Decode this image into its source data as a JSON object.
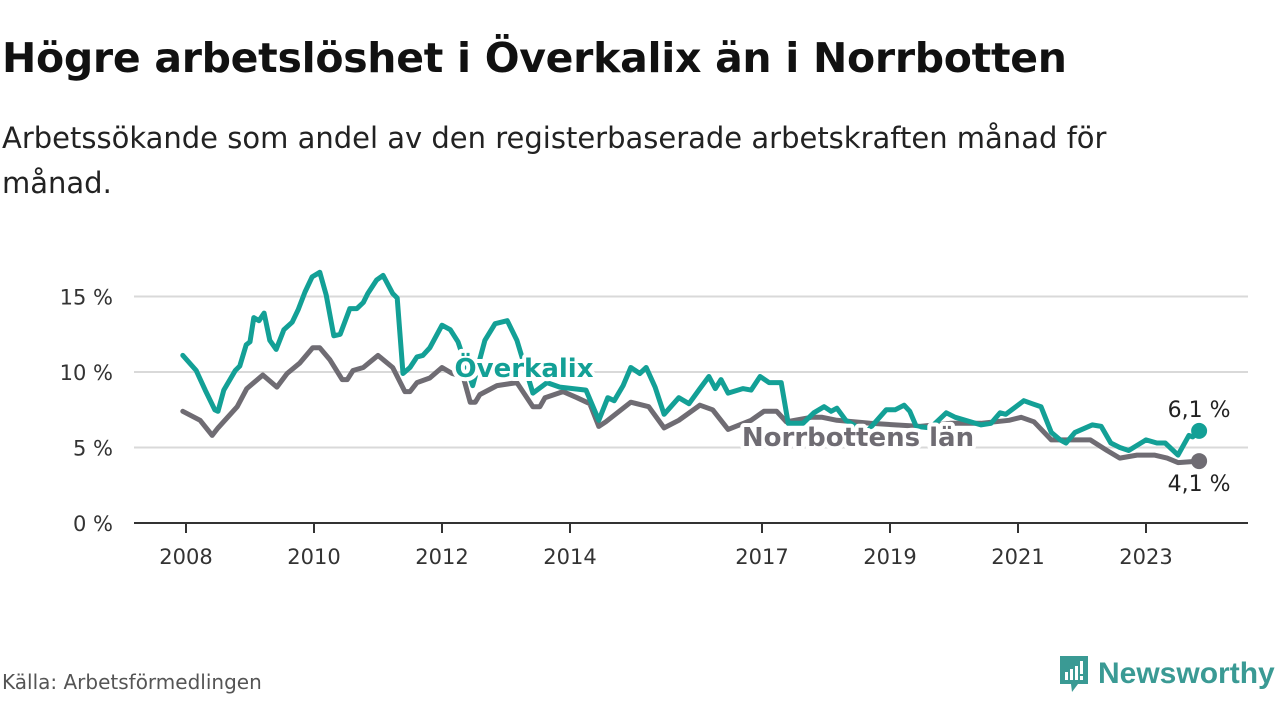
{
  "title": "Högre arbetslöshet i Överkalix än i Norrbotten",
  "subtitle": "Arbetssökande som andel av den registerbaserade arbetskraften månad för månad.",
  "source": "Källa: Arbetsförmedlingen",
  "logo": "Newsworthy",
  "colors": {
    "overkalix": "#13a096",
    "norrbotten": "#6f6c73",
    "grid": "#d9d9d9",
    "axis": "#333333"
  },
  "chart_data": {
    "type": "line",
    "title": "Högre arbetslöshet i Överkalix än i Norrbotten",
    "xlabel": "",
    "ylabel": "",
    "ylim": [
      0,
      17
    ],
    "xlim": [
      2007.7,
      2025.0
    ],
    "yticks": [
      0,
      5,
      10,
      15
    ],
    "ytick_labels": [
      "0 %",
      "5 %",
      "10 %",
      "15 %"
    ],
    "xticks": [
      2008,
      2010,
      2012,
      2014,
      2017,
      2019,
      2021,
      2023
    ],
    "xtick_labels": [
      "2008",
      "2010",
      "2012",
      "2014",
      "2017",
      "2019",
      "2021",
      "2023"
    ],
    "grid": true,
    "legend": "inline labels",
    "series": [
      {
        "name": "Överkalix",
        "end_label": "6,1 %",
        "points": [
          [
            2007.95,
            11.1
          ],
          [
            2008.16,
            10.1
          ],
          [
            2008.3,
            8.8
          ],
          [
            2008.45,
            7.5
          ],
          [
            2008.5,
            7.4
          ],
          [
            2008.59,
            8.8
          ],
          [
            2008.77,
            10.1
          ],
          [
            2008.84,
            10.4
          ],
          [
            2008.94,
            11.8
          ],
          [
            2009.0,
            12.0
          ],
          [
            2009.06,
            13.6
          ],
          [
            2009.14,
            13.4
          ],
          [
            2009.22,
            13.9
          ],
          [
            2009.31,
            12.1
          ],
          [
            2009.41,
            11.5
          ],
          [
            2009.53,
            12.8
          ],
          [
            2009.66,
            13.3
          ],
          [
            2009.75,
            14.1
          ],
          [
            2009.86,
            15.3
          ],
          [
            2009.97,
            16.3
          ],
          [
            2010.09,
            16.6
          ],
          [
            2010.19,
            15.1
          ],
          [
            2010.31,
            12.4
          ],
          [
            2010.41,
            12.5
          ],
          [
            2010.56,
            14.2
          ],
          [
            2010.67,
            14.2
          ],
          [
            2010.77,
            14.6
          ],
          [
            2010.84,
            15.2
          ],
          [
            2010.98,
            16.1
          ],
          [
            2011.08,
            16.4
          ],
          [
            2011.23,
            15.2
          ],
          [
            2011.3,
            14.9
          ],
          [
            2011.39,
            9.9
          ],
          [
            2011.5,
            10.3
          ],
          [
            2011.61,
            11.0
          ],
          [
            2011.7,
            11.1
          ],
          [
            2011.81,
            11.6
          ],
          [
            2012.0,
            13.1
          ],
          [
            2012.13,
            12.8
          ],
          [
            2012.25,
            12.0
          ],
          [
            2012.48,
            9.1
          ],
          [
            2012.67,
            12.1
          ],
          [
            2012.83,
            13.2
          ],
          [
            2013.02,
            13.4
          ],
          [
            2013.17,
            12.1
          ],
          [
            2013.42,
            8.6
          ],
          [
            2013.64,
            9.3
          ],
          [
            2013.84,
            9.0
          ],
          [
            2014.25,
            8.8
          ],
          [
            2014.45,
            6.8
          ],
          [
            2014.59,
            8.3
          ],
          [
            2014.69,
            8.1
          ],
          [
            2014.83,
            9.1
          ],
          [
            2014.95,
            10.3
          ],
          [
            2015.09,
            9.9
          ],
          [
            2015.19,
            10.3
          ],
          [
            2015.33,
            9.0
          ],
          [
            2015.47,
            7.2
          ],
          [
            2015.7,
            8.3
          ],
          [
            2015.86,
            7.9
          ],
          [
            2016.03,
            8.9
          ],
          [
            2016.17,
            9.7
          ],
          [
            2016.27,
            8.9
          ],
          [
            2016.36,
            9.5
          ],
          [
            2016.47,
            8.6
          ],
          [
            2016.7,
            8.9
          ],
          [
            2016.83,
            8.8
          ],
          [
            2016.97,
            9.7
          ],
          [
            2017.11,
            9.3
          ],
          [
            2017.23,
            9.3
          ],
          [
            2017.3,
            9.3
          ],
          [
            2017.41,
            6.6
          ],
          [
            2017.64,
            6.6
          ],
          [
            2017.81,
            7.3
          ],
          [
            2017.97,
            7.7
          ],
          [
            2018.08,
            7.4
          ],
          [
            2018.17,
            7.6
          ],
          [
            2018.31,
            6.8
          ],
          [
            2018.63,
            6.0
          ],
          [
            2018.94,
            7.5
          ],
          [
            2019.08,
            7.5
          ],
          [
            2019.22,
            7.8
          ],
          [
            2019.31,
            7.4
          ],
          [
            2019.41,
            6.4
          ],
          [
            2019.63,
            6.3
          ],
          [
            2019.88,
            7.3
          ],
          [
            2020.02,
            7.0
          ],
          [
            2020.42,
            6.5
          ],
          [
            2020.58,
            6.6
          ],
          [
            2020.72,
            7.3
          ],
          [
            2020.81,
            7.2
          ],
          [
            2021.09,
            8.1
          ],
          [
            2021.22,
            7.9
          ],
          [
            2021.36,
            7.7
          ],
          [
            2021.52,
            6.0
          ],
          [
            2021.66,
            5.5
          ],
          [
            2021.75,
            5.3
          ],
          [
            2021.89,
            6.0
          ],
          [
            2022.16,
            6.5
          ],
          [
            2022.3,
            6.4
          ],
          [
            2022.45,
            5.3
          ],
          [
            2022.59,
            5.0
          ],
          [
            2022.73,
            4.8
          ],
          [
            2023.0,
            5.5
          ],
          [
            2023.17,
            5.3
          ],
          [
            2023.3,
            5.3
          ],
          [
            2023.5,
            4.5
          ],
          [
            2023.67,
            5.8
          ],
          [
            2023.73,
            5.7
          ],
          [
            2023.83,
            6.1
          ]
        ]
      },
      {
        "name": "Norrbottens län",
        "end_label": "4,1 %",
        "points": [
          [
            2007.95,
            7.4
          ],
          [
            2008.22,
            6.8
          ],
          [
            2008.41,
            5.8
          ],
          [
            2008.5,
            6.3
          ],
          [
            2008.8,
            7.7
          ],
          [
            2008.95,
            8.9
          ],
          [
            2009.2,
            9.8
          ],
          [
            2009.42,
            9.0
          ],
          [
            2009.58,
            9.9
          ],
          [
            2009.78,
            10.6
          ],
          [
            2009.98,
            11.6
          ],
          [
            2010.09,
            11.6
          ],
          [
            2010.25,
            10.8
          ],
          [
            2010.44,
            9.5
          ],
          [
            2010.52,
            9.5
          ],
          [
            2010.61,
            10.1
          ],
          [
            2010.77,
            10.3
          ],
          [
            2011.0,
            11.1
          ],
          [
            2011.23,
            10.3
          ],
          [
            2011.42,
            8.7
          ],
          [
            2011.5,
            8.7
          ],
          [
            2011.61,
            9.3
          ],
          [
            2011.81,
            9.6
          ],
          [
            2012.0,
            10.3
          ],
          [
            2012.16,
            9.9
          ],
          [
            2012.33,
            9.7
          ],
          [
            2012.44,
            8.0
          ],
          [
            2012.52,
            8.0
          ],
          [
            2012.59,
            8.5
          ],
          [
            2012.86,
            9.1
          ],
          [
            2013.17,
            9.3
          ],
          [
            2013.42,
            7.7
          ],
          [
            2013.53,
            7.7
          ],
          [
            2013.61,
            8.3
          ],
          [
            2013.89,
            8.7
          ],
          [
            2014.11,
            8.3
          ],
          [
            2014.31,
            7.9
          ],
          [
            2014.45,
            6.4
          ],
          [
            2014.56,
            6.7
          ],
          [
            2014.95,
            8.0
          ],
          [
            2015.23,
            7.7
          ],
          [
            2015.47,
            6.3
          ],
          [
            2015.7,
            6.8
          ],
          [
            2016.03,
            7.8
          ],
          [
            2016.23,
            7.5
          ],
          [
            2016.47,
            6.2
          ],
          [
            2016.83,
            6.8
          ],
          [
            2017.03,
            7.4
          ],
          [
            2017.23,
            7.4
          ],
          [
            2017.38,
            6.7
          ],
          [
            2017.77,
            7.0
          ],
          [
            2017.94,
            7.0
          ],
          [
            2018.17,
            6.8
          ],
          [
            2018.69,
            6.6
          ],
          [
            2019.47,
            6.4
          ],
          [
            2019.94,
            6.6
          ],
          [
            2020.42,
            6.6
          ],
          [
            2020.86,
            6.8
          ],
          [
            2021.05,
            7.0
          ],
          [
            2021.25,
            6.7
          ],
          [
            2021.52,
            5.5
          ],
          [
            2021.92,
            5.5
          ],
          [
            2022.13,
            5.5
          ],
          [
            2022.39,
            4.8
          ],
          [
            2022.59,
            4.3
          ],
          [
            2022.86,
            4.5
          ],
          [
            2023.13,
            4.5
          ],
          [
            2023.33,
            4.3
          ],
          [
            2023.5,
            4.0
          ],
          [
            2023.83,
            4.1
          ]
        ]
      }
    ]
  }
}
